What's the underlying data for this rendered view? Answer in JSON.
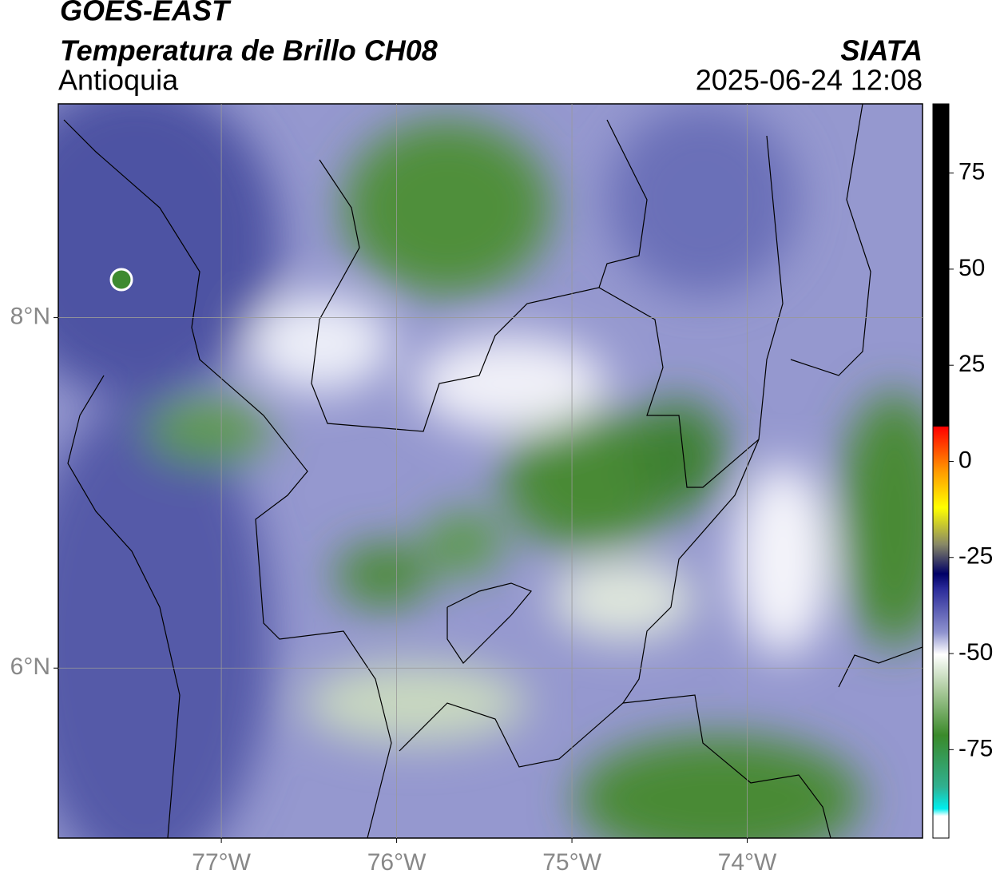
{
  "header": {
    "satellite": "GOES-EAST",
    "product": "Temperatura de Brillo CH08",
    "region": "Antioquia",
    "source": "SIATA",
    "datetime": "2025-06-24 12:08"
  },
  "chart_data": {
    "type": "map",
    "xlim": [
      -77.93,
      -73.0
    ],
    "ylim": [
      5.03,
      9.22
    ],
    "xticks": [
      {
        "value": -77,
        "label": "77°W"
      },
      {
        "value": -76,
        "label": "76°W"
      },
      {
        "value": -75,
        "label": "75°W"
      },
      {
        "value": -74,
        "label": "74°W"
      }
    ],
    "yticks": [
      {
        "value": 6,
        "label": "6°N"
      },
      {
        "value": 8,
        "label": "8°N"
      }
    ],
    "grid": true,
    "colorbar": {
      "lim": [
        -98,
        93
      ],
      "ticks": [
        -75,
        -50,
        -25,
        0,
        25,
        50,
        75
      ]
    }
  }
}
